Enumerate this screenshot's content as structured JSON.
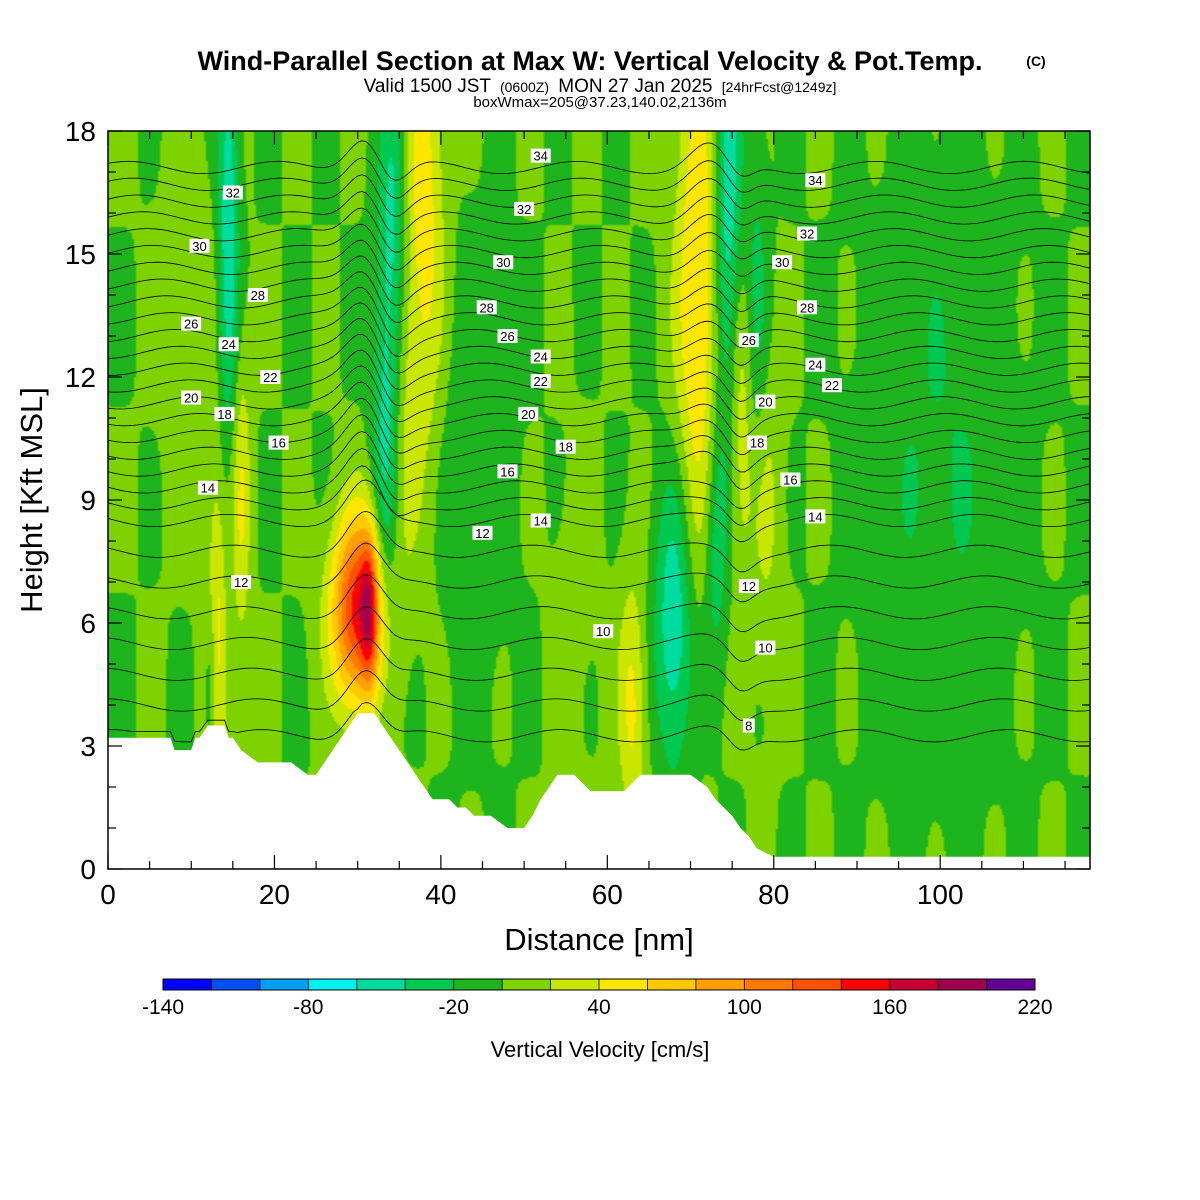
{
  "header": {
    "title": "Wind-Parallel Section at Max W: Vertical Velocity & Pot.Temp.",
    "copyright": "(C)",
    "valid_prefix": "Valid 1500 JST",
    "valid_utc": "(0600Z)",
    "valid_date": "MON 27 Jan 2025",
    "forecast": "[24hrFcst@1249z]",
    "box_info": "boxWmax=205@37.23,140.02,2136m"
  },
  "chart_data": {
    "type": "heatmap",
    "title": "Wind-Parallel Section at Max W: Vertical Velocity & Pot.Temp.",
    "xlabel": "Distance [nm]",
    "ylabel": "Height [Kft MSL]",
    "xlim": [
      0,
      118
    ],
    "ylim": [
      0,
      18
    ],
    "x_ticks": [
      "0",
      "20",
      "40",
      "60",
      "80",
      "100"
    ],
    "x_tick_values": [
      0,
      20,
      40,
      60,
      80,
      100
    ],
    "y_ticks": [
      "0",
      "3",
      "6",
      "9",
      "12",
      "15",
      "18"
    ],
    "y_tick_values": [
      0,
      3,
      6,
      9,
      12,
      15,
      18
    ],
    "colorbar": {
      "label": "Vertical Velocity [cm/s]",
      "min": -140,
      "max": 220,
      "step": 20,
      "tick_labels": [
        "-140",
        "-80",
        "-20",
        "40",
        "100",
        "160",
        "220"
      ],
      "tick_values": [
        -140,
        -80,
        -20,
        40,
        100,
        160,
        220
      ],
      "colors": [
        "#0000ff",
        "#0050f0",
        "#00a0f5",
        "#00f0f0",
        "#00dca0",
        "#00c850",
        "#1eb41e",
        "#7dd200",
        "#c8e600",
        "#ffe600",
        "#ffc800",
        "#ffa000",
        "#ff7800",
        "#ff5000",
        "#ff0000",
        "#c80032",
        "#a00050",
        "#640096"
      ]
    },
    "terrain": {
      "x": [
        0,
        4,
        7.5,
        8,
        10,
        10.5,
        11,
        12,
        14,
        14.5,
        15,
        16,
        18,
        20,
        21,
        22,
        24,
        25,
        26,
        27,
        28,
        30,
        32,
        33,
        34,
        35,
        36,
        37,
        38,
        39,
        40,
        41,
        42,
        43,
        44,
        45,
        46,
        48,
        50,
        51,
        52,
        54,
        56,
        58,
        60,
        62,
        64,
        66,
        68,
        70,
        72,
        73,
        74,
        75,
        76,
        77,
        78,
        80,
        84,
        90,
        100,
        110,
        118
      ],
      "height": [
        3.2,
        3.2,
        3.2,
        2.9,
        2.9,
        3.2,
        3.2,
        3.5,
        3.5,
        3.2,
        3.2,
        2.9,
        2.6,
        2.6,
        2.6,
        2.6,
        2.3,
        2.3,
        2.6,
        2.9,
        3.2,
        3.8,
        3.8,
        3.5,
        3.2,
        2.9,
        2.6,
        2.3,
        2.0,
        1.7,
        1.7,
        1.7,
        1.5,
        1.5,
        1.3,
        1.3,
        1.3,
        1.0,
        1.0,
        1.3,
        1.7,
        2.3,
        2.3,
        1.9,
        1.9,
        1.9,
        2.3,
        2.3,
        2.3,
        2.3,
        2.0,
        1.7,
        1.5,
        1.3,
        1.0,
        0.8,
        0.5,
        0.3,
        0.3,
        0.3,
        0.3,
        0.3,
        0.3
      ]
    },
    "updrafts": [
      {
        "x": 30,
        "height": 6.3,
        "sigma_x": 2.2,
        "sigma_h": 1.6,
        "w": 150
      },
      {
        "x": 31.4,
        "height": 6.3,
        "sigma_x": 0.7,
        "sigma_h": 1.3,
        "w": 75
      },
      {
        "x": 13,
        "height": 5.0,
        "sigma_x": 0.8,
        "sigma_h": 3.0,
        "w": 60
      },
      {
        "x": 16,
        "height": 9.0,
        "sigma_x": 0.8,
        "sigma_h": 2.8,
        "w": 40
      },
      {
        "x": 38,
        "height": 16.0,
        "sigma_x": 1.8,
        "sigma_h": 4.5,
        "w": 50
      },
      {
        "x": 35,
        "height": 11.0,
        "sigma_x": 1.4,
        "sigma_h": 3.5,
        "w": 30
      },
      {
        "x": 71,
        "height": 14.0,
        "sigma_x": 2.0,
        "sigma_h": 4.5,
        "w": 65
      },
      {
        "x": 76,
        "height": 11.5,
        "sigma_x": 1.0,
        "sigma_h": 3.0,
        "w": 40
      },
      {
        "x": 63,
        "height": 4.0,
        "sigma_x": 1.2,
        "sigma_h": 2.2,
        "w": 45
      },
      {
        "x": 79,
        "height": 9.0,
        "sigma_x": 1.5,
        "sigma_h": 3.0,
        "w": 25
      },
      {
        "x": 56,
        "height": 6.5,
        "sigma_x": 2.0,
        "sigma_h": 2.5,
        "w": 10
      },
      {
        "x": 10,
        "height": 14.0,
        "sigma_x": 3.0,
        "sigma_h": 4.0,
        "w": 10
      }
    ],
    "downdrafts": [
      {
        "x": 14.5,
        "height": 15.5,
        "sigma_x": 0.9,
        "sigma_h": 3.5,
        "w": -60
      },
      {
        "x": 12.5,
        "height": 4.5,
        "sigma_x": 0.6,
        "sigma_h": 1.6,
        "w": -50
      },
      {
        "x": 33.5,
        "height": 10.5,
        "sigma_x": 1.2,
        "sigma_h": 3.5,
        "w": -55
      },
      {
        "x": 34.5,
        "height": 16.0,
        "sigma_x": 1.2,
        "sigma_h": 3.0,
        "w": -45
      },
      {
        "x": 74.5,
        "height": 15.5,
        "sigma_x": 1.3,
        "sigma_h": 3.8,
        "w": -65
      },
      {
        "x": 68,
        "height": 6.0,
        "sigma_x": 1.6,
        "sigma_h": 2.5,
        "w": -60
      },
      {
        "x": 73,
        "height": 8.0,
        "sigma_x": 1.0,
        "sigma_h": 2.2,
        "w": -40
      },
      {
        "x": 78,
        "height": 13.5,
        "sigma_x": 1.0,
        "sigma_h": 3.0,
        "w": -30
      },
      {
        "x": 100,
        "height": 10.0,
        "sigma_x": 6.0,
        "sigma_h": 5.0,
        "w": -20
      },
      {
        "x": 44,
        "height": 10.0,
        "sigma_x": 3.0,
        "sigma_h": 3.5,
        "w": -20
      }
    ],
    "isentropes": {
      "levels_c": [
        8,
        10,
        12,
        14,
        16,
        18,
        20,
        22,
        24,
        26,
        28,
        30,
        32,
        34
      ],
      "labels": [
        {
          "text": "8",
          "x": 77,
          "height": 3.5
        },
        {
          "text": "10",
          "x": 59.5,
          "height": 5.8
        },
        {
          "text": "10",
          "x": 79,
          "height": 5.4
        },
        {
          "text": "12",
          "x": 16,
          "height": 7.0
        },
        {
          "text": "12",
          "x": 45,
          "height": 8.2
        },
        {
          "text": "12",
          "x": 77,
          "height": 6.9
        },
        {
          "text": "14",
          "x": 12,
          "height": 9.3
        },
        {
          "text": "14",
          "x": 52,
          "height": 8.5
        },
        {
          "text": "14",
          "x": 85,
          "height": 8.6
        },
        {
          "text": "16",
          "x": 20.5,
          "height": 10.4
        },
        {
          "text": "16",
          "x": 48,
          "height": 9.7
        },
        {
          "text": "16",
          "x": 82,
          "height": 9.5
        },
        {
          "text": "18",
          "x": 14,
          "height": 11.1
        },
        {
          "text": "18",
          "x": 55,
          "height": 10.3
        },
        {
          "text": "18",
          "x": 78,
          "height": 10.4
        },
        {
          "text": "20",
          "x": 10,
          "height": 11.5
        },
        {
          "text": "20",
          "x": 50.5,
          "height": 11.1
        },
        {
          "text": "20",
          "x": 79,
          "height": 11.4
        },
        {
          "text": "22",
          "x": 19.5,
          "height": 12.0
        },
        {
          "text": "22",
          "x": 52,
          "height": 11.9
        },
        {
          "text": "22",
          "x": 87,
          "height": 11.8
        },
        {
          "text": "24",
          "x": 14.5,
          "height": 12.8
        },
        {
          "text": "24",
          "x": 52,
          "height": 12.5
        },
        {
          "text": "24",
          "x": 85,
          "height": 12.3
        },
        {
          "text": "26",
          "x": 10,
          "height": 13.3
        },
        {
          "text": "26",
          "x": 48,
          "height": 13.0
        },
        {
          "text": "26",
          "x": 77,
          "height": 12.9
        },
        {
          "text": "28",
          "x": 18,
          "height": 14.0
        },
        {
          "text": "28",
          "x": 45.5,
          "height": 13.7
        },
        {
          "text": "28",
          "x": 84,
          "height": 13.7
        },
        {
          "text": "30",
          "x": 11,
          "height": 15.2
        },
        {
          "text": "30",
          "x": 47.5,
          "height": 14.8
        },
        {
          "text": "30",
          "x": 81,
          "height": 14.8
        },
        {
          "text": "32",
          "x": 15,
          "height": 16.5
        },
        {
          "text": "32",
          "x": 50,
          "height": 16.1
        },
        {
          "text": "32",
          "x": 84,
          "height": 15.5
        },
        {
          "text": "34",
          "x": 52,
          "height": 17.4
        },
        {
          "text": "34",
          "x": 85,
          "height": 16.8
        }
      ]
    }
  }
}
